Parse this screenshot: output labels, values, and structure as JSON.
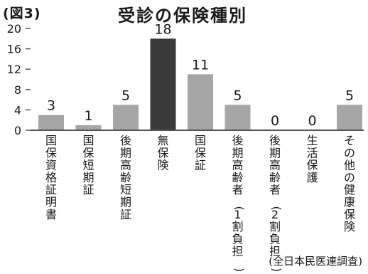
{
  "figure_label": "(図3)",
  "source": "(全日本民医連調査)",
  "colors": {
    "bar": "#a6a6a6",
    "highlight": "#3a3a3a",
    "axis": "#555555"
  },
  "chart_data": {
    "type": "bar",
    "title": "受診の保険種別",
    "xlabel": "",
    "ylabel": "",
    "ylim": [
      0,
      20
    ],
    "yticks": [
      0,
      4,
      8,
      12,
      16,
      20
    ],
    "categories": [
      "国保資格証明書",
      "国保短期証",
      "後期高齢短期証",
      "無保険",
      "国保証",
      "後期高齢者(1割負担)",
      "後期高齢者(2割負担)",
      "生活保護",
      "その他の健康保険"
    ],
    "values": [
      3,
      1,
      5,
      18,
      11,
      5,
      0,
      0,
      5
    ],
    "highlight_index": 3,
    "data_labels": [
      "3",
      "1",
      "5",
      "18",
      "11",
      "5",
      "0",
      "0",
      "5"
    ],
    "grid": false,
    "legend": "none"
  }
}
